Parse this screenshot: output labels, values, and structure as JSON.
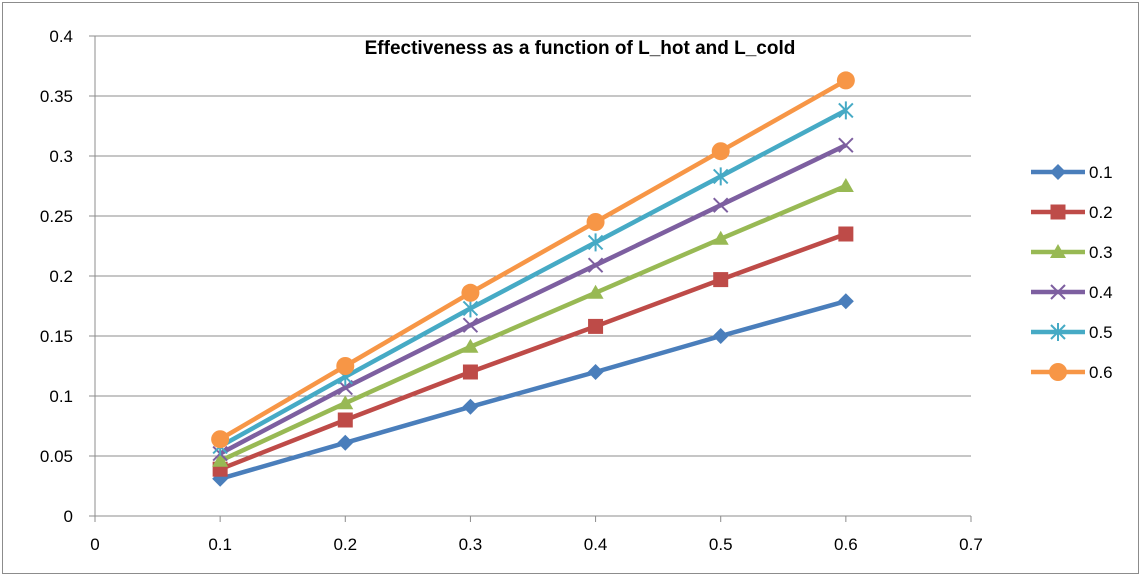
{
  "chart_data": {
    "type": "line",
    "title": "Effectiveness as a function of L_hot and L_cold",
    "xlabel": "",
    "ylabel": "",
    "xlim": [
      0,
      0.7
    ],
    "ylim": [
      0,
      0.4
    ],
    "x_ticks": [
      "0",
      "0.1",
      "0.2",
      "0.3",
      "0.4",
      "0.5",
      "0.6",
      "0.7"
    ],
    "y_ticks": [
      "0",
      "0.05",
      "0.1",
      "0.15",
      "0.2",
      "0.25",
      "0.3",
      "0.35",
      "0.4"
    ],
    "grid": "horizontal",
    "legend_position": "right",
    "x": [
      0.1,
      0.2,
      0.3,
      0.4,
      0.5,
      0.6
    ],
    "series": [
      {
        "name": "0.1",
        "color": "#4a7ebb",
        "marker": "diamond",
        "values": [
          0.031,
          0.061,
          0.091,
          0.12,
          0.15,
          0.179
        ]
      },
      {
        "name": "0.2",
        "color": "#be4b48",
        "marker": "square",
        "values": [
          0.039,
          0.08,
          0.12,
          0.158,
          0.197,
          0.235
        ]
      },
      {
        "name": "0.3",
        "color": "#98b954",
        "marker": "triangle",
        "values": [
          0.046,
          0.094,
          0.141,
          0.186,
          0.231,
          0.275
        ]
      },
      {
        "name": "0.4",
        "color": "#7d5fa0",
        "marker": "x",
        "values": [
          0.052,
          0.107,
          0.159,
          0.209,
          0.259,
          0.309
        ]
      },
      {
        "name": "0.5",
        "color": "#46aac5",
        "marker": "star",
        "values": [
          0.058,
          0.116,
          0.173,
          0.228,
          0.283,
          0.338
        ]
      },
      {
        "name": "0.6",
        "color": "#f79646",
        "marker": "circle",
        "values": [
          0.064,
          0.125,
          0.186,
          0.245,
          0.304,
          0.363
        ]
      }
    ]
  }
}
